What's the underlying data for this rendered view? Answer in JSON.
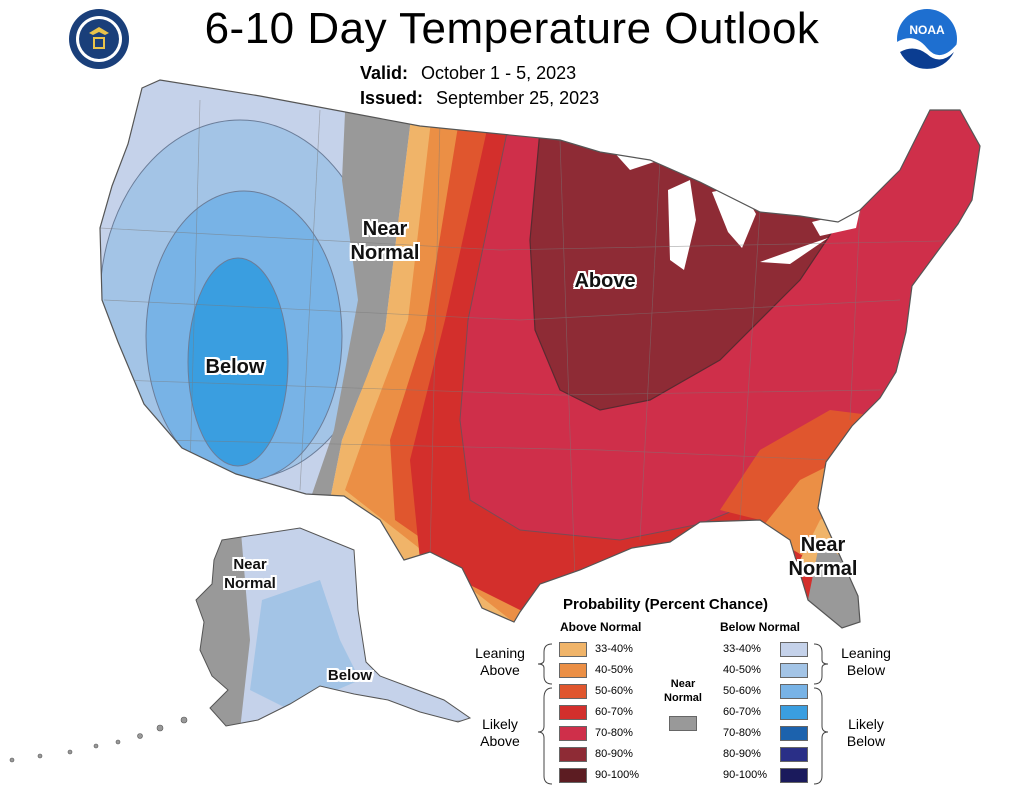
{
  "map": {
    "title": "6-10 Day Temperature Outlook",
    "valid_label": "Valid:",
    "valid_dates": "October 1 - 5, 2023",
    "issued_label": "Issued:",
    "issued_date": "September 25, 2023",
    "labels": {
      "near_normal_west": "Near Normal",
      "above": "Above",
      "below_west": "Below",
      "near_normal_florida": "Near Normal",
      "near_normal_alaska": "Near Normal",
      "below_alaska": "Below"
    },
    "categories": {
      "below_3340": "#c5d2ea",
      "below_4050": "#a3c4e6",
      "below_5060": "#78b3e6",
      "below_6070": "#3a9ee0",
      "near": "#999999",
      "above_3340": "#f0b469",
      "above_4050": "#eb8f45",
      "above_5060": "#e0562e",
      "above_6070": "#d32f2c",
      "above_7080": "#cf2f4a",
      "above_8090": "#8e2b35"
    }
  },
  "legend": {
    "title": "Probability (Percent Chance)",
    "above_header": "Above Normal",
    "below_header": "Below Normal",
    "above_items": [
      {
        "label": "33-40%",
        "color": "#f0b469"
      },
      {
        "label": "40-50%",
        "color": "#eb8f45"
      },
      {
        "label": "50-60%",
        "color": "#e0562e"
      },
      {
        "label": "60-70%",
        "color": "#d32f2c"
      },
      {
        "label": "70-80%",
        "color": "#cf2f4a"
      },
      {
        "label": "80-90%",
        "color": "#8e2b35"
      },
      {
        "label": "90-100%",
        "color": "#5c1c22"
      }
    ],
    "below_items": [
      {
        "label": "33-40%",
        "color": "#c5d2ea"
      },
      {
        "label": "40-50%",
        "color": "#a3c4e6"
      },
      {
        "label": "50-60%",
        "color": "#78b3e6"
      },
      {
        "label": "60-70%",
        "color": "#3a9ee0"
      },
      {
        "label": "70-80%",
        "color": "#1c62ad"
      },
      {
        "label": "80-90%",
        "color": "#2a2f87"
      },
      {
        "label": "90-100%",
        "color": "#1a1a5c"
      }
    ],
    "leaning_above": "Leaning Above",
    "likely_above": "Likely Above",
    "leaning_below": "Leaning Below",
    "likely_below": "Likely Below",
    "near_normal": "Near Normal",
    "near_color": "#999999"
  },
  "logos": {
    "noaa_text": "NOAA",
    "doc_seal": "Department of Commerce seal"
  }
}
